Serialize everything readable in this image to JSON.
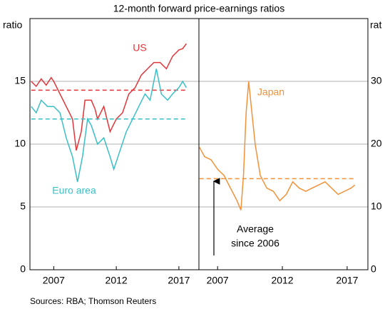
{
  "chart_data": [
    {
      "type": "line",
      "subtitle": "12-month forward price-earnings ratios",
      "y_label": "ratio",
      "xlim": [
        2005.1,
        2018.6
      ],
      "xticks": [
        2007,
        2012,
        2017
      ],
      "ylim": [
        0,
        20
      ],
      "yticks": [
        0,
        5,
        10,
        15
      ],
      "grid": true,
      "tick_side": "left",
      "series": [
        {
          "name": "US",
          "color": "#e0363a",
          "average": 14.3,
          "x": [
            2005.2,
            2005.6,
            2006,
            2006.4,
            2006.8,
            2007,
            2007.5,
            2008,
            2008.5,
            2008.8,
            2009.2,
            2009.5,
            2010,
            2010.3,
            2010.5,
            2011,
            2011.5,
            2012,
            2012.5,
            2013,
            2013.5,
            2014,
            2014.5,
            2015,
            2015.5,
            2016,
            2016.5,
            2017,
            2017.3,
            2017.6
          ],
          "values": [
            15,
            14.6,
            15.2,
            14.7,
            15.3,
            15,
            14,
            13,
            12,
            9.5,
            11,
            13.5,
            13.5,
            12.8,
            12,
            13,
            11,
            12,
            12.5,
            14,
            14.5,
            15.5,
            16,
            16.5,
            16.5,
            16,
            17,
            17.5,
            17.6,
            18
          ]
        },
        {
          "name": "Euro area",
          "color": "#3bbfc6",
          "average": 12,
          "x": [
            2005.2,
            2005.6,
            2006,
            2006.5,
            2007,
            2007.5,
            2008,
            2008.5,
            2008.9,
            2009.3,
            2009.7,
            2010,
            2010.5,
            2011,
            2011.5,
            2011.8,
            2012.3,
            2012.8,
            2013.3,
            2013.8,
            2014.3,
            2014.7,
            2015.2,
            2015.6,
            2016.1,
            2016.5,
            2017,
            2017.3,
            2017.6
          ],
          "values": [
            13,
            12.5,
            13.5,
            13,
            13,
            12.5,
            10.5,
            9,
            7,
            9,
            12,
            11.5,
            10,
            10.5,
            9,
            8,
            9.5,
            11,
            12,
            13,
            14,
            13.5,
            16,
            14,
            13.5,
            14,
            14.5,
            15,
            14.5
          ]
        }
      ]
    },
    {
      "type": "line",
      "y_label": "rat",
      "xlim": [
        2005.56,
        2018.6
      ],
      "xticks": [
        2007,
        2012,
        2017
      ],
      "ylim": [
        0,
        40
      ],
      "yticks": [
        0,
        10,
        20,
        30
      ],
      "grid": true,
      "tick_side": "right",
      "annotation": [
        "Average",
        "since 2006"
      ],
      "series": [
        {
          "name": "Japan",
          "color": "#f0923a",
          "average": 14.5,
          "x": [
            2005.6,
            2006,
            2006.5,
            2007,
            2007.5,
            2008,
            2008.5,
            2008.8,
            2009,
            2009.2,
            2009.4,
            2009.6,
            2009.9,
            2010.3,
            2010.8,
            2011.3,
            2011.8,
            2012.3,
            2012.8,
            2013.3,
            2013.8,
            2014.3,
            2014.8,
            2015.3,
            2015.8,
            2016.3,
            2016.8,
            2017.3,
            2017.6
          ],
          "values": [
            19.5,
            18,
            17.5,
            16,
            15,
            13,
            11,
            9.5,
            15,
            25,
            30,
            26,
            20,
            15,
            13,
            12.5,
            11,
            12,
            14,
            13,
            12.5,
            13,
            13.5,
            14,
            13,
            12,
            12.5,
            13,
            13.5
          ]
        }
      ]
    }
  ]
}
